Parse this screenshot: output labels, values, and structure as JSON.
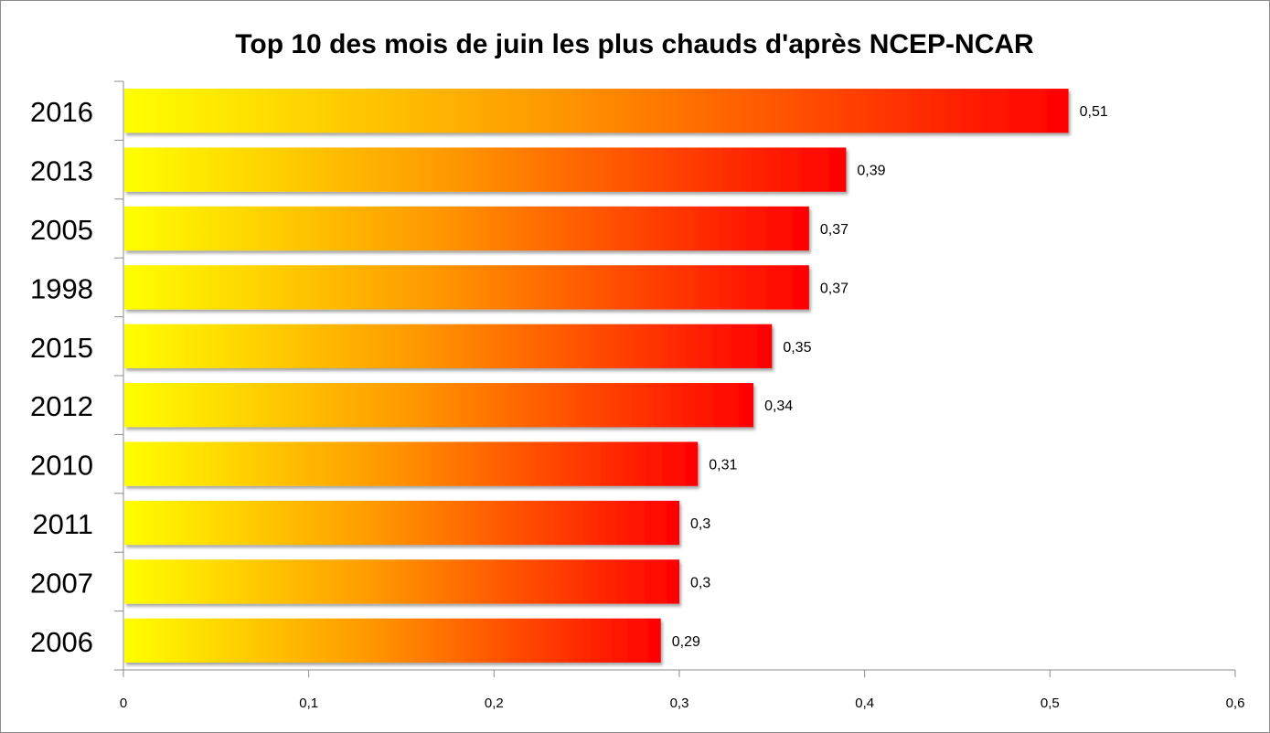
{
  "chart_data": {
    "type": "bar",
    "orientation": "horizontal",
    "title": "Top 10 des mois de juin les plus chauds d'après NCEP-NCAR",
    "categories": [
      "2016",
      "2013",
      "2005",
      "1998",
      "2015",
      "2012",
      "2010",
      "2011",
      "2007",
      "2006"
    ],
    "values": [
      0.51,
      0.39,
      0.37,
      0.37,
      0.35,
      0.34,
      0.31,
      0.3,
      0.3,
      0.29
    ],
    "value_labels": [
      "0,51",
      "0,39",
      "0,37",
      "0,37",
      "0,35",
      "0,34",
      "0,31",
      "0,3",
      "0,3",
      "0,29"
    ],
    "xlim": [
      0,
      0.6
    ],
    "x_ticks": [
      0,
      0.1,
      0.2,
      0.3,
      0.4,
      0.5,
      0.6
    ],
    "x_tick_labels": [
      "0",
      "0,1",
      "0,2",
      "0,3",
      "0,4",
      "0,5",
      "0,6"
    ],
    "xlabel": "",
    "ylabel": "",
    "grid": false,
    "legend": "none",
    "colors": {
      "gradient_start": "#ffff00",
      "gradient_mid": "#ff9900",
      "gradient_end": "#ff0000",
      "axis": "#8c8c8c"
    }
  }
}
